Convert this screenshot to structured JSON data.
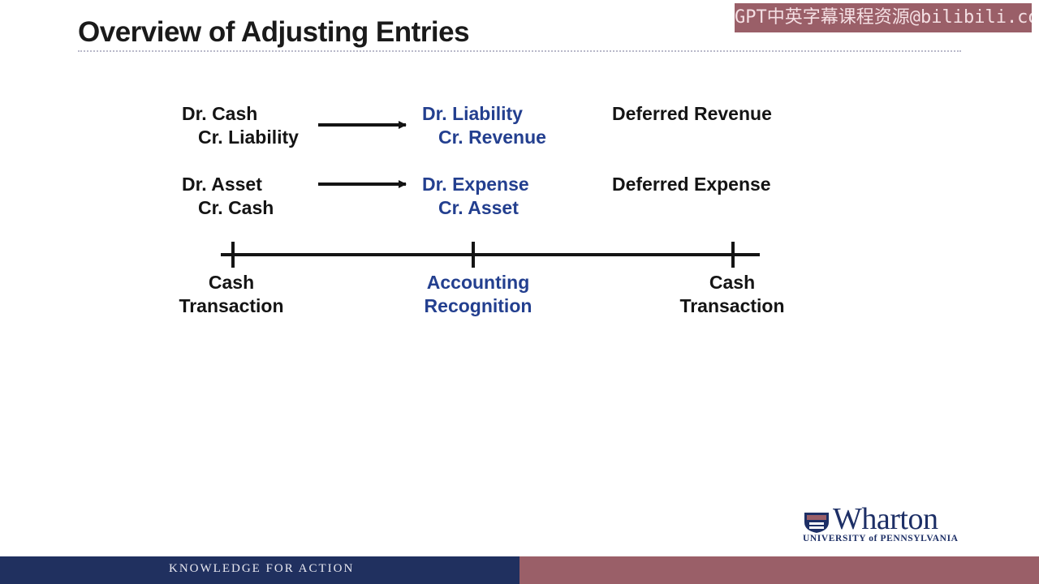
{
  "title": "Overview of Adjusting Entries",
  "watermark": "GPT中英字幕课程资源@bilibili.com",
  "rows": [
    {
      "entry_left": [
        "Dr. Cash",
        "Cr. Liability"
      ],
      "entry_right": [
        "Dr. Liability",
        "Cr. Revenue"
      ],
      "label": "Deferred Revenue"
    },
    {
      "entry_left": [
        "Dr. Asset",
        "Cr. Cash"
      ],
      "entry_right": [
        "Dr. Expense",
        "Cr. Asset"
      ],
      "label": "Deferred Expense"
    }
  ],
  "timeline": {
    "points": [
      [
        "Cash",
        "Transaction"
      ],
      [
        "Accounting",
        "Recognition"
      ],
      [
        "Cash",
        "Transaction"
      ]
    ]
  },
  "colors": {
    "text": "#141414",
    "accent_blue": "#233f8f",
    "footer_navy": "#20305f",
    "footer_rose": "#9a5f68"
  },
  "footer": {
    "tagline": "KNOWLEDGE FOR ACTION"
  },
  "logo": {
    "name": "Wharton",
    "subtitle": "UNIVERSITY of PENNSYLVANIA"
  }
}
